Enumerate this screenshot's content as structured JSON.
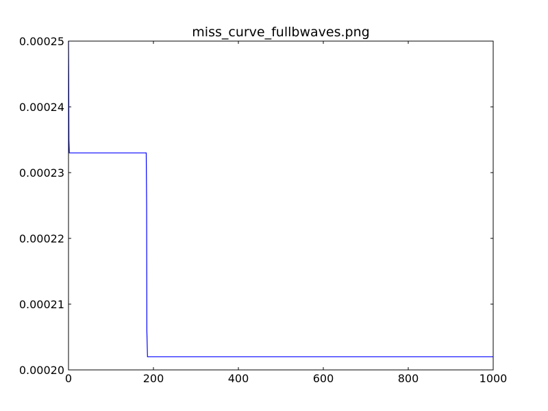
{
  "chart_data": {
    "type": "line",
    "title": "miss_curve_fullbwaves.png",
    "xlabel": "",
    "ylabel": "",
    "xlim": [
      0,
      1000
    ],
    "ylim": [
      0.0002,
      0.00025
    ],
    "grid": false,
    "x_ticks": [
      0,
      200,
      400,
      600,
      800,
      1000
    ],
    "x_tick_labels": [
      "0",
      "200",
      "400",
      "600",
      "800",
      "1000"
    ],
    "y_ticks": [
      0.0002,
      0.00021,
      0.00022,
      0.00023,
      0.00024,
      0.00025
    ],
    "y_tick_labels": [
      "0.00020",
      "0.00021",
      "0.00022",
      "0.00023",
      "0.00024",
      "0.00025"
    ],
    "series": [
      {
        "name": "miss_curve",
        "color": "#0000ff",
        "x": [
          0,
          0.5,
          1,
          2,
          183,
          184,
          184.5,
          186,
          1000
        ],
        "y": [
          0.00025,
          0.000245,
          0.000235,
          0.000233,
          0.000233,
          0.000225,
          0.000206,
          0.000202,
          0.000202
        ]
      }
    ]
  }
}
